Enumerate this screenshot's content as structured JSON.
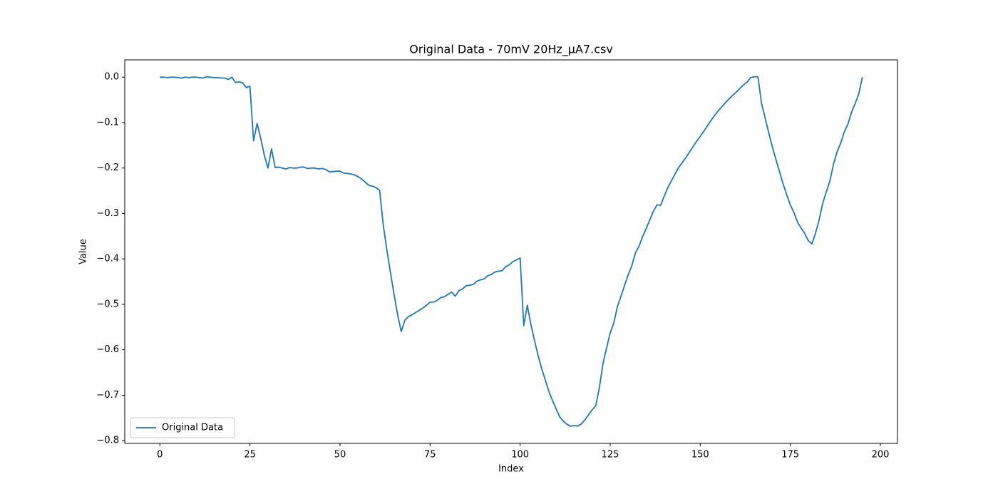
{
  "chart_data": {
    "type": "line",
    "title": "Original Data - 70mV 20Hz_µA7.csv",
    "x_label": "Index",
    "y_label": "Value",
    "x": [
      0,
      1,
      2,
      3,
      4,
      5,
      6,
      7,
      8,
      9,
      10,
      11,
      12,
      13,
      14,
      15,
      16,
      17,
      18,
      19,
      20,
      21,
      22,
      23,
      24,
      25,
      26,
      27,
      28,
      29,
      30,
      31,
      32,
      33,
      34,
      35,
      36,
      37,
      38,
      39,
      40,
      41,
      42,
      43,
      44,
      45,
      46,
      47,
      48,
      49,
      50,
      51,
      52,
      53,
      54,
      55,
      56,
      57,
      58,
      59,
      60,
      61,
      62,
      63,
      64,
      65,
      66,
      67,
      68,
      69,
      70,
      71,
      72,
      73,
      74,
      75,
      76,
      77,
      78,
      79,
      80,
      81,
      82,
      83,
      84,
      85,
      86,
      87,
      88,
      89,
      90,
      91,
      92,
      93,
      94,
      95,
      96,
      97,
      98,
      99,
      100,
      101,
      102,
      103,
      104,
      105,
      106,
      107,
      108,
      109,
      110,
      111,
      112,
      113,
      114,
      115,
      116,
      117,
      118,
      119,
      120,
      121,
      122,
      123,
      124,
      125,
      126,
      127,
      128,
      129,
      130,
      131,
      132,
      133,
      134,
      135,
      136,
      137,
      138,
      139,
      140,
      141,
      142,
      143,
      144,
      145,
      146,
      147,
      148,
      149,
      150,
      151,
      152,
      153,
      154,
      155,
      156,
      157,
      158,
      159,
      160,
      161,
      162,
      163,
      164,
      165,
      166,
      167,
      168,
      169,
      170,
      171,
      172,
      173,
      174,
      175,
      176,
      177,
      178,
      179,
      180,
      181,
      182,
      183,
      184,
      185,
      186,
      187,
      188,
      189,
      190,
      191,
      192,
      193,
      194,
      195
    ],
    "series": [
      {
        "name": "Original Data",
        "color": "#1f77b4",
        "values": [
          0,
          0,
          -0.001,
          0,
          0,
          -0.001,
          -0.002,
          0,
          -0.001,
          0,
          0,
          -0.001,
          -0.002,
          0.001,
          0,
          -0.001,
          -0.001,
          -0.002,
          -0.002,
          -0.005,
          0,
          -0.012,
          -0.01,
          -0.013,
          -0.023,
          -0.02,
          -0.14,
          -0.102,
          -0.135,
          -0.172,
          -0.2,
          -0.158,
          -0.199,
          -0.198,
          -0.2,
          -0.202,
          -0.199,
          -0.2,
          -0.2,
          -0.198,
          -0.198,
          -0.201,
          -0.2,
          -0.2,
          -0.202,
          -0.201,
          -0.203,
          -0.208,
          -0.208,
          -0.207,
          -0.207,
          -0.211,
          -0.212,
          -0.213,
          -0.215,
          -0.219,
          -0.224,
          -0.231,
          -0.238,
          -0.24,
          -0.243,
          -0.249,
          -0.325,
          -0.38,
          -0.43,
          -0.478,
          -0.523,
          -0.56,
          -0.535,
          -0.527,
          -0.523,
          -0.518,
          -0.513,
          -0.508,
          -0.502,
          -0.495,
          -0.495,
          -0.491,
          -0.485,
          -0.483,
          -0.478,
          -0.473,
          -0.482,
          -0.47,
          -0.466,
          -0.459,
          -0.458,
          -0.456,
          -0.449,
          -0.446,
          -0.444,
          -0.437,
          -0.434,
          -0.429,
          -0.427,
          -0.426,
          -0.417,
          -0.413,
          -0.406,
          -0.402,
          -0.398,
          -0.547,
          -0.502,
          -0.545,
          -0.58,
          -0.613,
          -0.642,
          -0.667,
          -0.692,
          -0.712,
          -0.73,
          -0.748,
          -0.757,
          -0.764,
          -0.768,
          -0.767,
          -0.768,
          -0.763,
          -0.754,
          -0.743,
          -0.732,
          -0.723,
          -0.683,
          -0.63,
          -0.596,
          -0.563,
          -0.541,
          -0.505,
          -0.482,
          -0.458,
          -0.435,
          -0.415,
          -0.387,
          -0.372,
          -0.351,
          -0.333,
          -0.314,
          -0.295,
          -0.281,
          -0.282,
          -0.262,
          -0.243,
          -0.228,
          -0.213,
          -0.199,
          -0.188,
          -0.177,
          -0.165,
          -0.153,
          -0.141,
          -0.13,
          -0.119,
          -0.107,
          -0.095,
          -0.084,
          -0.074,
          -0.065,
          -0.056,
          -0.048,
          -0.04,
          -0.033,
          -0.025,
          -0.017,
          -0.011,
          -0.001,
          0.001,
          0.001,
          -0.057,
          -0.09,
          -0.122,
          -0.153,
          -0.181,
          -0.208,
          -0.235,
          -0.259,
          -0.281,
          -0.298,
          -0.319,
          -0.332,
          -0.344,
          -0.36,
          -0.367,
          -0.343,
          -0.314,
          -0.277,
          -0.252,
          -0.228,
          -0.191,
          -0.164,
          -0.145,
          -0.12,
          -0.103,
          -0.077,
          -0.058,
          -0.037,
          0
        ]
      }
    ],
    "xlim": [
      -9.75,
      204.75
    ],
    "ylim": [
      -0.806,
      0.038
    ],
    "xticks": [
      0,
      25,
      50,
      75,
      100,
      125,
      150,
      175,
      200
    ],
    "yticks": [
      {
        "value": 0,
        "label": "0.0"
      },
      {
        "value": -0.1,
        "label": "−0.1"
      },
      {
        "value": -0.2,
        "label": "−0.2"
      },
      {
        "value": -0.3,
        "label": "−0.3"
      },
      {
        "value": -0.4,
        "label": "−0.4"
      },
      {
        "value": -0.5,
        "label": "−0.5"
      },
      {
        "value": -0.6,
        "label": "−0.6"
      },
      {
        "value": -0.7,
        "label": "−0.7"
      },
      {
        "value": -0.8,
        "label": "−0.8"
      }
    ],
    "grid": false,
    "legend": "lower-left"
  }
}
